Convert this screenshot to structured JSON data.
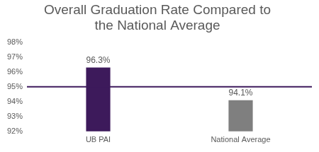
{
  "chart_data": {
    "type": "bar",
    "title": [
      "Overall Graduation Rate Compared to",
      "the National Average"
    ],
    "categories": [
      "UB PAI",
      "National Average"
    ],
    "values": [
      96.3,
      94.1
    ],
    "value_labels": [
      "96.3%",
      "94.1%"
    ],
    "colors": [
      "#3d1a5b",
      "#7f7f7f"
    ],
    "ylim": [
      92,
      98
    ],
    "yticks": [
      {
        "value": 92,
        "label": "92%"
      },
      {
        "value": 93,
        "label": "93%"
      },
      {
        "value": 94,
        "label": "94%"
      },
      {
        "value": 95,
        "label": "95%"
      },
      {
        "value": 96,
        "label": "96%"
      },
      {
        "value": 97,
        "label": "97%"
      },
      {
        "value": 98,
        "label": "98%"
      }
    ],
    "reference_line": 95,
    "grid": false,
    "data_labels": true
  }
}
